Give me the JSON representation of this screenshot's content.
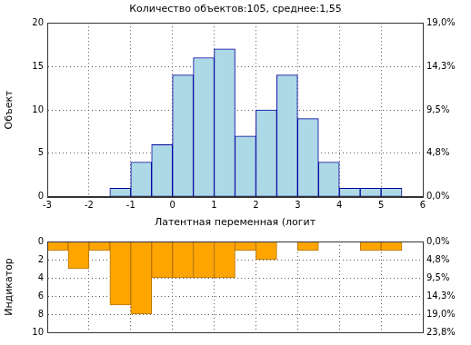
{
  "chart_data": [
    {
      "type": "histogram",
      "title": "Количество объектов:105, среднее:1,55",
      "x_label": "Латентная переменная (логит",
      "y_label": "Объект",
      "bins": [
        -1.5,
        -1,
        -0.5,
        0,
        0.5,
        1,
        1.5,
        2,
        2.5,
        3,
        3.5,
        4,
        4.5,
        5,
        5.5
      ],
      "values": [
        1,
        4,
        6,
        14,
        16,
        17,
        7,
        10,
        14,
        9,
        4,
        1,
        1,
        1
      ],
      "color": "#add8e6",
      "xlim": [
        -3,
        6
      ],
      "xticks": [
        -3,
        -2,
        -1,
        0,
        1,
        2,
        3,
        4,
        5,
        6
      ],
      "ylim": [
        0,
        20
      ],
      "yticks": [
        0,
        5,
        10,
        15,
        20
      ],
      "y2lim": [
        0,
        19.04
      ],
      "y2ticks": [
        {
          "value": 0,
          "label": "0,0%"
        },
        {
          "value": 4.76,
          "label": "4,8%"
        },
        {
          "value": 9.52,
          "label": "9,5%"
        },
        {
          "value": 14.29,
          "label": "14,3%"
        },
        {
          "value": 19.04,
          "label": "19,0%"
        }
      ],
      "grid": true
    },
    {
      "type": "histogram",
      "y_label": "Индикатор",
      "bins": [
        -3,
        -2.5,
        -2,
        -1.5,
        -1,
        -0.5,
        0,
        0.5,
        1,
        1.5,
        2,
        2.5,
        3,
        3.5,
        4,
        4.5,
        5,
        5.5,
        6
      ],
      "values": [
        1,
        3,
        1,
        7,
        8,
        4,
        4,
        4,
        4,
        1,
        2,
        0,
        1,
        0,
        0,
        1,
        1,
        0
      ],
      "color": "#ffa500",
      "xlim": [
        -3,
        6
      ],
      "xticks": [
        -3,
        -2,
        -1,
        0,
        1,
        2,
        3,
        4,
        5,
        6
      ],
      "ylim": [
        10,
        0
      ],
      "yticks": [
        0,
        2,
        4,
        6,
        8,
        10
      ],
      "y2lim": [
        23.8,
        0
      ],
      "y2ticks": [
        {
          "value": 0,
          "label": "0,0%"
        },
        {
          "value": 4.76,
          "label": "4,8%"
        },
        {
          "value": 9.52,
          "label": "9,5%"
        },
        {
          "value": 14.29,
          "label": "14,3%"
        },
        {
          "value": 19.04,
          "label": "19,0%"
        },
        {
          "value": 23.8,
          "label": "23,8%"
        }
      ],
      "grid": true,
      "tick_labels": "y"
    }
  ]
}
